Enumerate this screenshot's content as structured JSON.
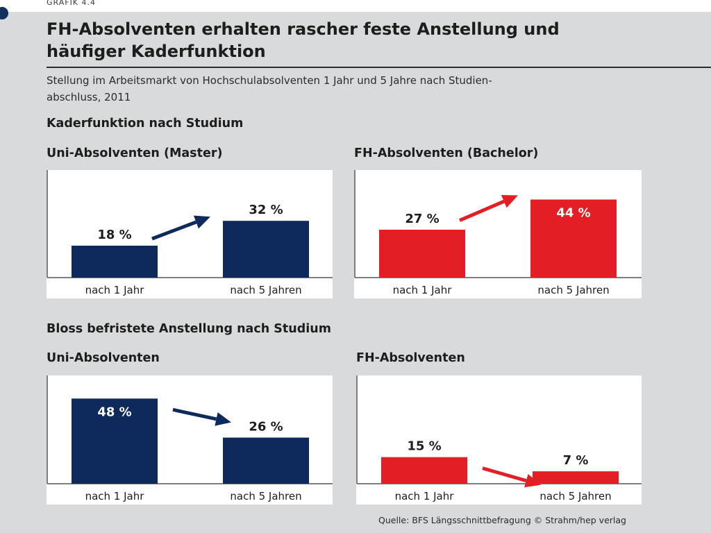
{
  "header": {
    "grafik_label": "GRAFIK 4.4",
    "title_line1": "FH-Absolventen erhalten rascher feste Anstellung und",
    "title_line2": "häufiger Kaderfunktion",
    "subtitle_line1": "Stellung im Arbeitsmarkt von Hochschulabsolventen 1 Jahr und 5 Jahre nach Studien-",
    "subtitle_line2": "abschluss, 2011"
  },
  "sections": {
    "kader": "Kaderfunktion nach Studium",
    "befristet": "Bloss befristete Anstellung nach Studium"
  },
  "source": "Quelle: BFS Längsschnittbefragung  © Strahm/hep verlag",
  "colors": {
    "uni": "#0e2a5c",
    "fh": "#e31e24",
    "panel": "#ffffff",
    "background": "#d9dadb"
  },
  "chart_data": [
    {
      "type": "bar",
      "title": "Uni-Absolventen (Master)",
      "categories": [
        "nach 1 Jahr",
        "nach 5 Jahren"
      ],
      "values": [
        18,
        32
      ],
      "value_labels": [
        "18 %",
        "32 %"
      ],
      "label_inside": [
        false,
        false
      ],
      "color": "#0e2a5c",
      "arrow_direction": "up",
      "ylim": [
        0,
        55
      ]
    },
    {
      "type": "bar",
      "title": "FH-Absolventen (Bachelor)",
      "categories": [
        "nach 1 Jahr",
        "nach 5 Jahren"
      ],
      "values": [
        27,
        44
      ],
      "value_labels": [
        "27 %",
        "44 %"
      ],
      "label_inside": [
        false,
        true
      ],
      "color": "#e31e24",
      "arrow_direction": "up",
      "ylim": [
        0,
        55
      ]
    },
    {
      "type": "bar",
      "title": "Uni-Absolventen",
      "categories": [
        "nach 1 Jahr",
        "nach 5 Jahren"
      ],
      "values": [
        48,
        26
      ],
      "value_labels": [
        "48 %",
        "26 %"
      ],
      "label_inside": [
        true,
        false
      ],
      "color": "#0e2a5c",
      "arrow_direction": "down",
      "ylim": [
        0,
        55
      ]
    },
    {
      "type": "bar",
      "title": "FH-Absolventen",
      "categories": [
        "nach 1 Jahr",
        "nach 5 Jahren"
      ],
      "values": [
        15,
        7
      ],
      "value_labels": [
        "15 %",
        "7 %"
      ],
      "label_inside": [
        false,
        false
      ],
      "color": "#e31e24",
      "arrow_direction": "down",
      "ylim": [
        0,
        55
      ]
    }
  ]
}
